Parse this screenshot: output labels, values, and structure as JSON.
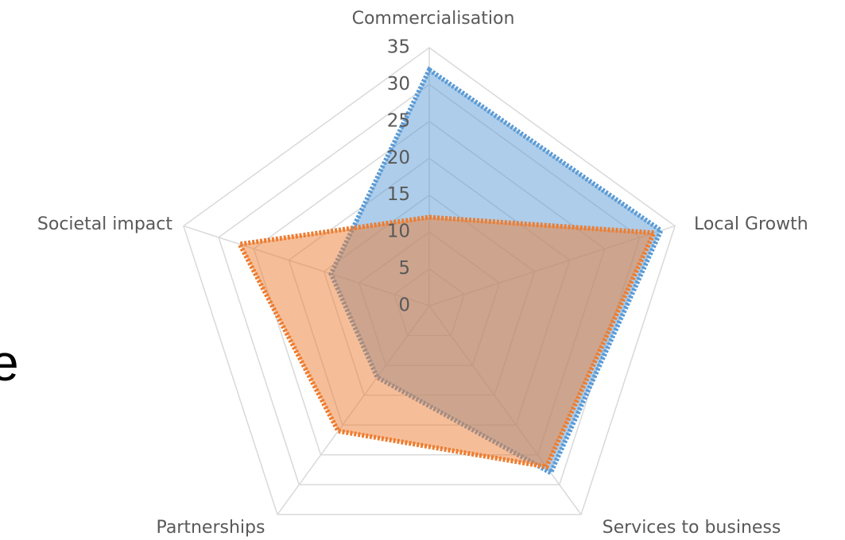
{
  "cropped_text": "e",
  "chart_data": {
    "type": "radar",
    "categories": [
      "Commercialisation",
      "Local Growth",
      "Services to business",
      "Partnerships",
      "Societal impact"
    ],
    "series": [
      {
        "color": "#5b9bd5",
        "values": [
          32,
          33,
          28,
          12,
          14
        ]
      },
      {
        "color": "#ed7d31",
        "values": [
          12,
          32,
          27,
          21,
          27
        ]
      }
    ],
    "ylim": [
      0,
      35
    ],
    "yticks": [
      0,
      5,
      10,
      15,
      20,
      25,
      30,
      35
    ],
    "grid": true
  }
}
